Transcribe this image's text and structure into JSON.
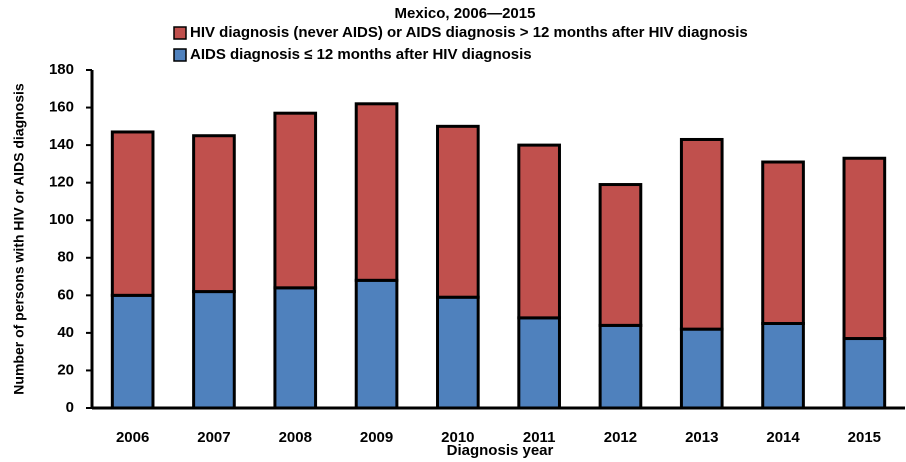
{
  "chart_data": {
    "type": "stacked_bar",
    "title": "Mexico,    2006—2015",
    "x_label": "Diagnosis year",
    "y_label": "Number of persons with HIV or AIDS diagnosis",
    "categories": [
      "2006",
      "2007",
      "2008",
      "2009",
      "2010",
      "2011",
      "2012",
      "2013",
      "2014",
      "2015"
    ],
    "series": [
      {
        "name": "AIDS diagnosis ≤ 12 months after HIV diagnosis",
        "color": "#4f81bd",
        "values": [
          60,
          62,
          64,
          68,
          59,
          48,
          44,
          42,
          45,
          37
        ]
      },
      {
        "name": "HIV diagnosis (never AIDS) or AIDS diagnosis > 12 months after HIV diagnosis",
        "color": "#c0504d",
        "values": [
          87,
          83,
          93,
          94,
          91,
          92,
          75,
          101,
          86,
          96
        ]
      }
    ],
    "ylim": [
      0,
      180
    ],
    "yticks": [
      0,
      20,
      40,
      60,
      80,
      100,
      120,
      140,
      160,
      180
    ],
    "grid": false
  }
}
